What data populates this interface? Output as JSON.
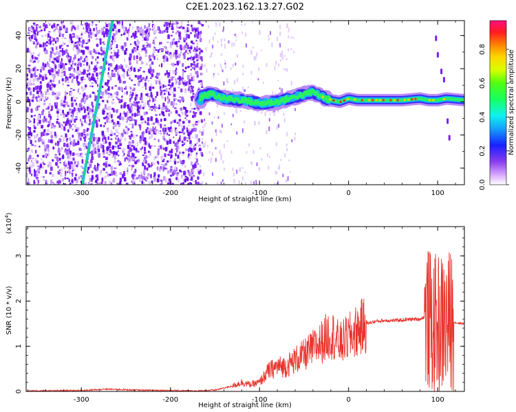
{
  "title": "C2E1.2023.162.13.27.G02",
  "chart_data": [
    {
      "type": "heatmap",
      "xlabel": "Height of straight line (km)",
      "ylabel": "Frequency (Hz)",
      "xlim": [
        -362,
        130
      ],
      "ylim": [
        -50,
        49
      ],
      "xticks": [
        -300,
        -200,
        -100,
        0,
        100
      ],
      "yticks": [
        -40,
        -20,
        0,
        20,
        40
      ],
      "colorbar": {
        "label": "Normalized spectral amplitude",
        "range": [
          0.0,
          0.97
        ],
        "ticks": [
          0.0,
          0.2,
          0.4,
          0.6,
          0.8
        ]
      },
      "ridge": {
        "description_points_x": [
          -165,
          -155,
          -140,
          -120,
          -100,
          -80,
          -60,
          -40,
          -30,
          -20,
          -10,
          0,
          10,
          30,
          60,
          80,
          90,
          100,
          110,
          130
        ],
        "description_points_y": [
          3,
          5,
          2,
          1,
          -1,
          0,
          3,
          6,
          3,
          1,
          0,
          2,
          1,
          1,
          1,
          2,
          1,
          1,
          2,
          1
        ]
      },
      "diagonal_line": {
        "x": [
          -299,
          -265
        ],
        "y": [
          -50,
          49
        ]
      },
      "grid": false
    },
    {
      "type": "line",
      "xlabel": "Height of straight line (km)",
      "ylabel": "SNR (10 * v/v)",
      "yscale_label": "(x10",
      "yscale_exp": "4",
      "yscale_close": ")",
      "xlim": [
        -362,
        130
      ],
      "ylim": [
        0,
        3.65
      ],
      "xticks": [
        -300,
        -200,
        -100,
        0,
        100
      ],
      "yticks": [
        0,
        1,
        2,
        3
      ],
      "series": [
        {
          "color": "#e8342e",
          "envelope_x": [
            -362,
            -300,
            -270,
            -240,
            -200,
            -170,
            -150,
            -130,
            -120,
            -110,
            -100,
            -90,
            -80,
            -70,
            -60,
            -50,
            -40,
            -30,
            -20,
            -10,
            0,
            10,
            20,
            30,
            40,
            50,
            60,
            70,
            80,
            85,
            90,
            95,
            100,
            105,
            110,
            115,
            120,
            130
          ],
          "envelope_y": [
            0.01,
            0.02,
            0.05,
            0.03,
            0.02,
            0.01,
            0.03,
            0.12,
            0.2,
            0.15,
            0.2,
            0.45,
            0.55,
            0.55,
            0.7,
            0.8,
            0.95,
            1.1,
            1.3,
            1.05,
            1.2,
            1.35,
            1.5,
            1.55,
            1.57,
            1.57,
            1.58,
            1.6,
            1.6,
            1.65,
            1.6,
            1.4,
            1.5,
            1.5,
            1.5,
            1.6,
            1.52,
            1.5
          ]
        }
      ],
      "grid": false
    }
  ]
}
